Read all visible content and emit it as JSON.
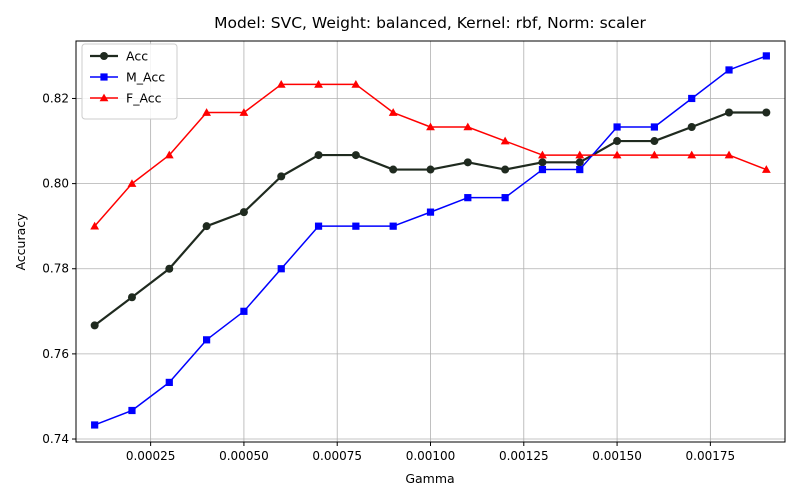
{
  "chart_data": {
    "type": "line",
    "title": "Model: SVC, Weight: balanced, Kernel: rbf, Norm: scaler",
    "xlabel": "Gamma",
    "ylabel": "Accuracy",
    "xlim": [
      5e-05,
      0.00195
    ],
    "ylim": [
      0.7393,
      0.8335
    ],
    "xticks": [
      0.00025,
      0.0005,
      0.00075,
      0.001,
      0.00125,
      0.0015,
      0.00175
    ],
    "xtick_labels": [
      "0.00025",
      "0.00050",
      "0.00075",
      "0.00100",
      "0.00125",
      "0.00150",
      "0.00175"
    ],
    "yticks": [
      0.74,
      0.76,
      0.78,
      0.8,
      0.82
    ],
    "ytick_labels": [
      "0.74",
      "0.76",
      "0.78",
      "0.80",
      "0.82"
    ],
    "grid": true,
    "legend_position": "top-left",
    "x": [
      0.0001,
      0.0002,
      0.0003,
      0.0004,
      0.0005,
      0.0006,
      0.0007,
      0.0008,
      0.0009,
      0.001,
      0.0011,
      0.0012,
      0.0013,
      0.0014,
      0.0015,
      0.0016,
      0.0017,
      0.0018,
      0.0019
    ],
    "series": [
      {
        "name": "Acc",
        "color": "#1f2a1f",
        "marker": "circle",
        "values": [
          0.7667,
          0.7733,
          0.78,
          0.79,
          0.7933,
          0.8017,
          0.8067,
          0.8067,
          0.8033,
          0.8033,
          0.805,
          0.8033,
          0.805,
          0.805,
          0.81,
          0.81,
          0.8133,
          0.8167,
          0.8167
        ]
      },
      {
        "name": "M_Acc",
        "color": "#0000ff",
        "marker": "square",
        "values": [
          0.7433,
          0.7467,
          0.7533,
          0.7633,
          0.77,
          0.78,
          0.79,
          0.79,
          0.79,
          0.7933,
          0.7967,
          0.7967,
          0.8033,
          0.8033,
          0.8133,
          0.8133,
          0.82,
          0.8267,
          0.83
        ]
      },
      {
        "name": "F_Acc",
        "color": "#ff0000",
        "marker": "triangle",
        "values": [
          0.79,
          0.8,
          0.8067,
          0.8167,
          0.8167,
          0.8233,
          0.8233,
          0.8233,
          0.8167,
          0.8133,
          0.8133,
          0.81,
          0.8067,
          0.8067,
          0.8067,
          0.8067,
          0.8067,
          0.8067,
          0.8033
        ]
      }
    ]
  }
}
